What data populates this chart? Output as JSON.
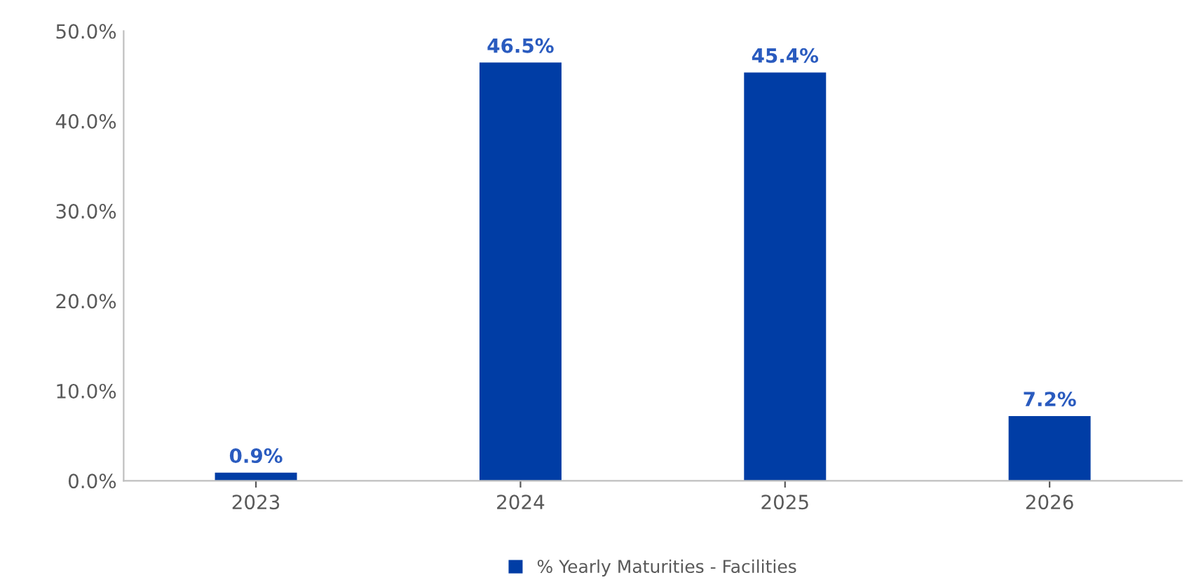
{
  "chart_data": {
    "type": "bar",
    "categories": [
      "2023",
      "2024",
      "2025",
      "2026"
    ],
    "series": [
      {
        "name": "% Yearly Maturities - Facilities",
        "color": "#003da5",
        "values": [
          0.9,
          46.5,
          45.4,
          7.2
        ],
        "value_labels": [
          "0.9%",
          "46.5%",
          "45.4%",
          "7.2%"
        ]
      }
    ],
    "ylim": [
      0,
      50
    ],
    "yticks": [
      {
        "value": 0,
        "label": "0.0%"
      },
      {
        "value": 10,
        "label": "10.0%"
      },
      {
        "value": 20,
        "label": "20.0%"
      },
      {
        "value": 30,
        "label": "30.0%"
      },
      {
        "value": 40,
        "label": "40.0%"
      },
      {
        "value": 50,
        "label": "50.0%"
      }
    ],
    "grid": false,
    "legend": "bottom"
  }
}
